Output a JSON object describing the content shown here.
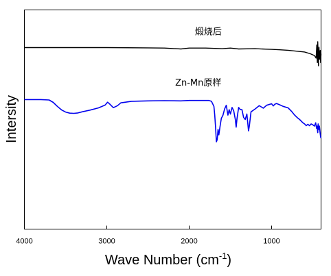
{
  "chart_data": {
    "type": "line",
    "xlabel": "Wave Number (cm",
    "xlabel_sup": "-1",
    "xlabel_close": ")",
    "ylabel": "Intersity",
    "xlim": [
      4000,
      400
    ],
    "x_reversed": true,
    "ylim": [
      0,
      1
    ],
    "y_ticks_shown": false,
    "grid": false,
    "x_ticks": [
      4000,
      3000,
      2000,
      1000
    ],
    "x_tick_labels": [
      "4000",
      "3000",
      "2000",
      "1000"
    ],
    "series": [
      {
        "name": "煅烧后",
        "color": "#000000",
        "label_anchor": [
          1930,
          0.888
        ],
        "points": [
          [
            4000,
            0.828
          ],
          [
            3500,
            0.828
          ],
          [
            3000,
            0.828
          ],
          [
            2500,
            0.827
          ],
          [
            2300,
            0.826
          ],
          [
            2100,
            0.822
          ],
          [
            2000,
            0.826
          ],
          [
            1800,
            0.826
          ],
          [
            1600,
            0.823
          ],
          [
            1500,
            0.826
          ],
          [
            1400,
            0.822
          ],
          [
            1200,
            0.823
          ],
          [
            1000,
            0.82
          ],
          [
            900,
            0.818
          ],
          [
            800,
            0.816
          ],
          [
            700,
            0.812
          ],
          [
            600,
            0.808
          ],
          [
            530,
            0.8
          ],
          [
            480,
            0.792
          ],
          [
            460,
            0.78
          ],
          [
            452,
            0.84
          ],
          [
            445,
            0.76
          ],
          [
            440,
            0.855
          ],
          [
            432,
            0.745
          ],
          [
            425,
            0.83
          ],
          [
            418,
            0.775
          ],
          [
            410,
            0.815
          ],
          [
            405,
            0.76
          ],
          [
            400,
            0.8
          ]
        ]
      },
      {
        "name": "Zn-Mn原样",
        "color": "#0000ee",
        "label_anchor": [
          2170,
          0.655
        ],
        "points": [
          [
            4000,
            0.591
          ],
          [
            3800,
            0.591
          ],
          [
            3700,
            0.589
          ],
          [
            3650,
            0.578
          ],
          [
            3600,
            0.56
          ],
          [
            3550,
            0.544
          ],
          [
            3500,
            0.534
          ],
          [
            3450,
            0.529
          ],
          [
            3400,
            0.528
          ],
          [
            3350,
            0.53
          ],
          [
            3300,
            0.535
          ],
          [
            3200,
            0.543
          ],
          [
            3100,
            0.553
          ],
          [
            3020,
            0.566
          ],
          [
            2990,
            0.579
          ],
          [
            2960,
            0.569
          ],
          [
            2920,
            0.554
          ],
          [
            2870,
            0.563
          ],
          [
            2830,
            0.576
          ],
          [
            2700,
            0.583
          ],
          [
            2500,
            0.585
          ],
          [
            2300,
            0.586
          ],
          [
            2100,
            0.585
          ],
          [
            2000,
            0.587
          ],
          [
            1850,
            0.587
          ],
          [
            1760,
            0.587
          ],
          [
            1730,
            0.583
          ],
          [
            1700,
            0.56
          ],
          [
            1690,
            0.52
          ],
          [
            1680,
            0.465
          ],
          [
            1670,
            0.398
          ],
          [
            1660,
            0.408
          ],
          [
            1650,
            0.455
          ],
          [
            1640,
            0.43
          ],
          [
            1625,
            0.47
          ],
          [
            1610,
            0.505
          ],
          [
            1590,
            0.52
          ],
          [
            1570,
            0.548
          ],
          [
            1550,
            0.565
          ],
          [
            1530,
            0.52
          ],
          [
            1515,
            0.545
          ],
          [
            1500,
            0.525
          ],
          [
            1480,
            0.555
          ],
          [
            1460,
            0.54
          ],
          [
            1440,
            0.5
          ],
          [
            1430,
            0.465
          ],
          [
            1420,
            0.503
          ],
          [
            1400,
            0.555
          ],
          [
            1380,
            0.545
          ],
          [
            1360,
            0.545
          ],
          [
            1340,
            0.51
          ],
          [
            1320,
            0.5
          ],
          [
            1300,
            0.525
          ],
          [
            1280,
            0.448
          ],
          [
            1270,
            0.47
          ],
          [
            1250,
            0.535
          ],
          [
            1200,
            0.548
          ],
          [
            1150,
            0.563
          ],
          [
            1100,
            0.552
          ],
          [
            1060,
            0.565
          ],
          [
            1000,
            0.572
          ],
          [
            980,
            0.562
          ],
          [
            960,
            0.57
          ],
          [
            940,
            0.573
          ],
          [
            900,
            0.567
          ],
          [
            860,
            0.56
          ],
          [
            800,
            0.553
          ],
          [
            760,
            0.538
          ],
          [
            720,
            0.52
          ],
          [
            690,
            0.509
          ],
          [
            660,
            0.5
          ],
          [
            620,
            0.485
          ],
          [
            600,
            0.48
          ],
          [
            580,
            0.472
          ],
          [
            560,
            0.478
          ],
          [
            540,
            0.472
          ],
          [
            520,
            0.48
          ],
          [
            500,
            0.476
          ],
          [
            480,
            0.47
          ],
          [
            465,
            0.485
          ],
          [
            455,
            0.46
          ],
          [
            448,
            0.47
          ],
          [
            440,
            0.44
          ],
          [
            435,
            0.48
          ],
          [
            428,
            0.455
          ],
          [
            420,
            0.47
          ],
          [
            412,
            0.44
          ],
          [
            405,
            0.42
          ],
          [
            400,
            0.415
          ]
        ]
      }
    ]
  }
}
